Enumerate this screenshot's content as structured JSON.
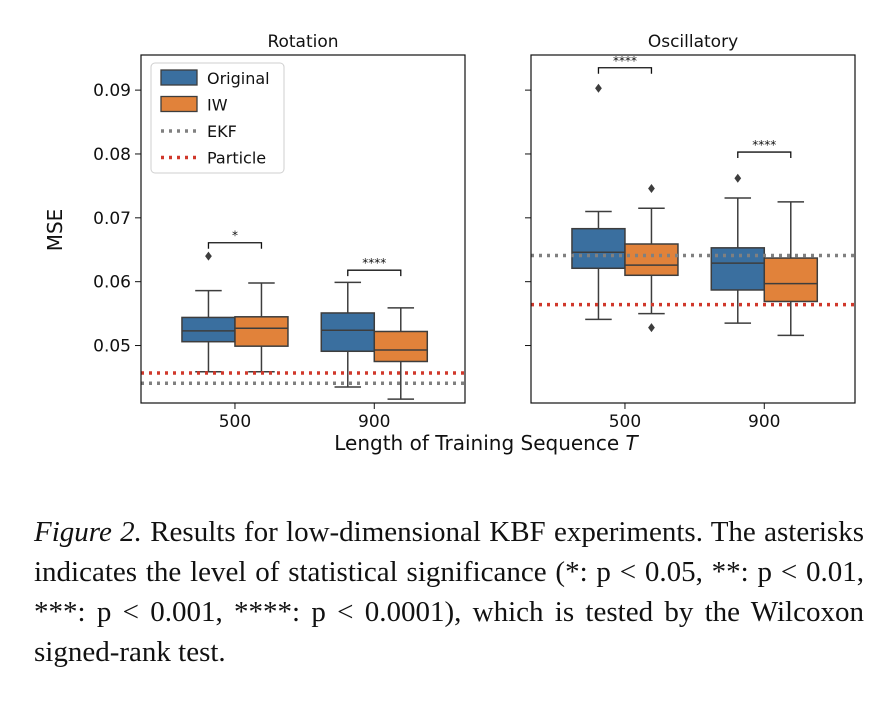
{
  "chart_data": {
    "type": "box",
    "ylabel": "MSE",
    "xlabel": "Length of Training Sequence T",
    "xlabel_text": "Length of Training Sequence ",
    "xlabel_var": "T",
    "categories": [
      "500",
      "900"
    ],
    "ylim": [
      0.041,
      0.0955
    ],
    "yticks": [
      0.05,
      0.06,
      0.07,
      0.08,
      0.09
    ],
    "ytick_labels": [
      "0.05",
      "0.06",
      "0.07",
      "0.08",
      "0.09"
    ],
    "legend": {
      "location": "upper-left",
      "entries": [
        {
          "label": "Original",
          "kind": "box",
          "color": "#3a6f9f"
        },
        {
          "label": "IW",
          "kind": "box",
          "color": "#e1823a"
        },
        {
          "label": "EKF",
          "kind": "dotted-line",
          "color": "#808080"
        },
        {
          "label": "Particle",
          "kind": "dotted-line",
          "color": "#d0382b"
        }
      ]
    },
    "panels": [
      {
        "title": "Rotation",
        "ekf": 0.0441,
        "particle": 0.0457,
        "groups": [
          {
            "category": "500",
            "original": {
              "whislo": 0.0459,
              "q1": 0.0506,
              "med": 0.0523,
              "q3": 0.0544,
              "whishi": 0.0586,
              "fliers": [
                0.064
              ]
            },
            "iw": {
              "whislo": 0.0459,
              "q1": 0.0499,
              "med": 0.0527,
              "q3": 0.0545,
              "whishi": 0.0598,
              "fliers": []
            },
            "significance": "*",
            "sig_y": 0.0661
          },
          {
            "category": "900",
            "original": {
              "whislo": 0.0435,
              "q1": 0.0491,
              "med": 0.0524,
              "q3": 0.0551,
              "whishi": 0.0599,
              "fliers": []
            },
            "iw": {
              "whislo": 0.0416,
              "q1": 0.0475,
              "med": 0.0493,
              "q3": 0.0522,
              "whishi": 0.0559,
              "fliers": []
            },
            "significance": "****",
            "sig_y": 0.0618
          }
        ]
      },
      {
        "title": "Oscillatory",
        "ekf": 0.0641,
        "particle": 0.0564,
        "groups": [
          {
            "category": "500",
            "original": {
              "whislo": 0.0541,
              "q1": 0.0621,
              "med": 0.0646,
              "q3": 0.0683,
              "whishi": 0.071,
              "fliers": [
                0.0903
              ]
            },
            "iw": {
              "whislo": 0.055,
              "q1": 0.061,
              "med": 0.0626,
              "q3": 0.0659,
              "whishi": 0.0715,
              "fliers": [
                0.0746,
                0.0528
              ]
            },
            "significance": "****",
            "sig_y": 0.0935
          },
          {
            "category": "900",
            "original": {
              "whislo": 0.0535,
              "q1": 0.0587,
              "med": 0.0629,
              "q3": 0.0653,
              "whishi": 0.0731,
              "fliers": [
                0.0762
              ]
            },
            "iw": {
              "whislo": 0.0516,
              "q1": 0.0569,
              "med": 0.0597,
              "q3": 0.0637,
              "whishi": 0.0725,
              "fliers": []
            },
            "significance": "****",
            "sig_y": 0.0803
          }
        ]
      }
    ]
  },
  "caption": {
    "label": "Figure 2.",
    "text": " Results for low-dimensional KBF experiments.  The asterisks indicates the level of statistical significance (*: p < 0.05, **: p < 0.01, ***: p < 0.001, ****: p < 0.0001), which is tested by the Wilcoxon signed-rank test."
  }
}
